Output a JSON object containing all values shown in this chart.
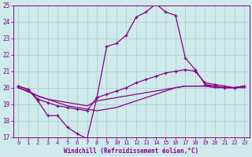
{
  "background_color": "#ceeaea",
  "grid_color": "#aacccc",
  "line_color": "#880088",
  "xlim": [
    -0.5,
    23.5
  ],
  "ylim": [
    17,
    25
  ],
  "yticks": [
    17,
    18,
    19,
    20,
    21,
    22,
    23,
    24,
    25
  ],
  "xticks": [
    0,
    1,
    2,
    3,
    4,
    5,
    6,
    7,
    8,
    9,
    10,
    11,
    12,
    13,
    14,
    15,
    16,
    17,
    18,
    19,
    20,
    21,
    22,
    23
  ],
  "xlabel": "Windchill (Refroidissement éolien,°C)",
  "series1_x": [
    0,
    1,
    2,
    3,
    4,
    5,
    6,
    7,
    8,
    9,
    10,
    11,
    12,
    13,
    14,
    15,
    16,
    17,
    18,
    19,
    20,
    21,
    22,
    23
  ],
  "series1_y": [
    20.1,
    19.9,
    19.2,
    18.3,
    18.3,
    17.6,
    17.2,
    16.9,
    19.4,
    22.5,
    22.7,
    23.2,
    24.3,
    24.6,
    25.1,
    24.6,
    24.4,
    21.8,
    21.1,
    20.2,
    20.1,
    20.0,
    20.0,
    20.1
  ],
  "series2_x": [
    0,
    1,
    2,
    3,
    4,
    5,
    6,
    7,
    8,
    9,
    10,
    11,
    12,
    13,
    14,
    15,
    16,
    17,
    18,
    19,
    20,
    21,
    22,
    23
  ],
  "series2_y": [
    20.1,
    19.9,
    19.3,
    19.1,
    18.9,
    18.8,
    18.7,
    18.6,
    19.4,
    19.6,
    19.8,
    20.0,
    20.3,
    20.5,
    20.7,
    20.9,
    21.0,
    21.1,
    21.0,
    20.3,
    20.2,
    20.1,
    20.0,
    20.1
  ],
  "series3_x": [
    0,
    2,
    3,
    4,
    5,
    6,
    7,
    8,
    9,
    10,
    11,
    12,
    13,
    14,
    15,
    16,
    17,
    18,
    19,
    20,
    21,
    22,
    23
  ],
  "series3_y": [
    20.0,
    19.5,
    19.3,
    19.2,
    19.1,
    19.0,
    18.9,
    19.2,
    19.3,
    19.4,
    19.5,
    19.6,
    19.7,
    19.8,
    19.9,
    20.0,
    20.1,
    20.1,
    20.1,
    20.1,
    20.0,
    20.0,
    20.1
  ],
  "series4_x": [
    0,
    1,
    2,
    3,
    4,
    5,
    6,
    7,
    8,
    9,
    10,
    11,
    12,
    13,
    14,
    15,
    16,
    17,
    18,
    19,
    20,
    21,
    22,
    23
  ],
  "series4_y": [
    20.0,
    19.8,
    19.5,
    19.3,
    19.1,
    18.9,
    18.8,
    18.7,
    18.6,
    18.7,
    18.8,
    19.0,
    19.2,
    19.4,
    19.6,
    19.8,
    20.0,
    20.1,
    20.1,
    20.1,
    20.0,
    20.0,
    20.0,
    20.0
  ]
}
